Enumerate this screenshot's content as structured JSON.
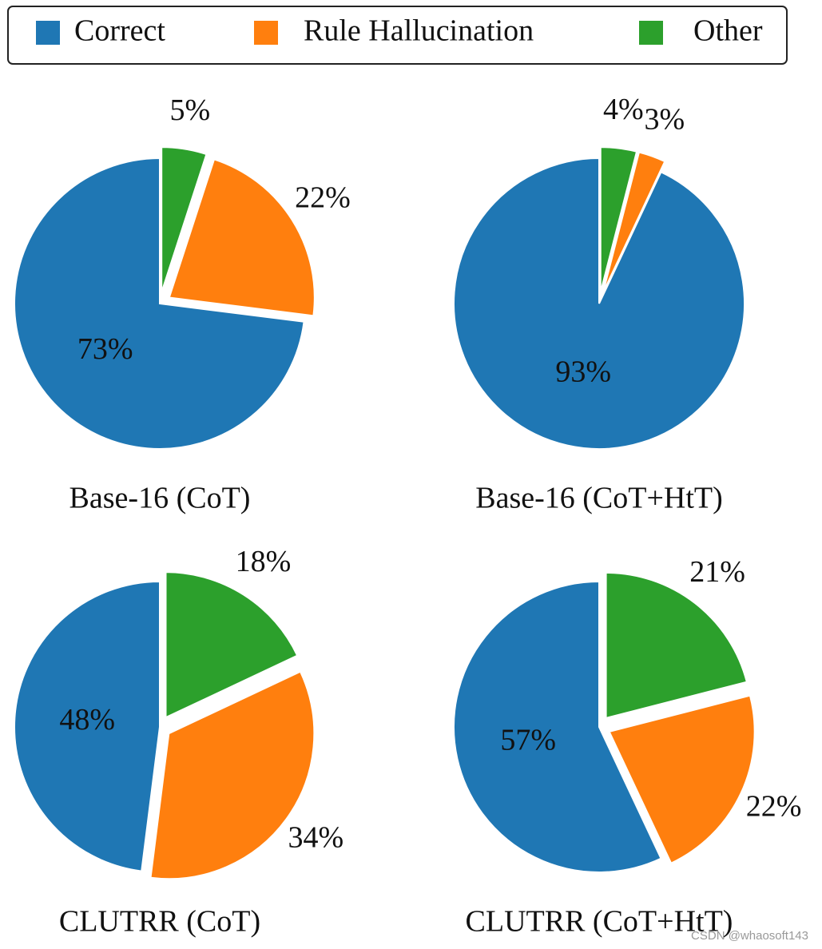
{
  "chart_data": [
    {
      "type": "pie",
      "title": "Base-16 (CoT)",
      "categories": [
        "Correct",
        "Rule Hallucination",
        "Other"
      ],
      "values": [
        73,
        22,
        5
      ],
      "value_labels": [
        "73%",
        "22%",
        "5%"
      ],
      "colors": [
        "#1f77b4",
        "#ff7f0e",
        "#2ca02c"
      ]
    },
    {
      "type": "pie",
      "title": "Base-16 (CoT+HtT)",
      "categories": [
        "Correct",
        "Rule Hallucination",
        "Other"
      ],
      "values": [
        93,
        3,
        4
      ],
      "value_labels": [
        "93%",
        "3%",
        "4%"
      ],
      "colors": [
        "#1f77b4",
        "#ff7f0e",
        "#2ca02c"
      ]
    },
    {
      "type": "pie",
      "title": "CLUTRR (CoT)",
      "categories": [
        "Correct",
        "Rule Hallucination",
        "Other"
      ],
      "values": [
        48,
        34,
        18
      ],
      "value_labels": [
        "48%",
        "34%",
        "18%"
      ],
      "colors": [
        "#1f77b4",
        "#ff7f0e",
        "#2ca02c"
      ]
    },
    {
      "type": "pie",
      "title": "CLUTRR (CoT+HtT)",
      "categories": [
        "Correct",
        "Rule Hallucination",
        "Other"
      ],
      "values": [
        57,
        22,
        21
      ],
      "value_labels": [
        "57%",
        "22%",
        "21%"
      ],
      "colors": [
        "#1f77b4",
        "#ff7f0e",
        "#2ca02c"
      ]
    }
  ],
  "watermark": "CSDN @whaosoft143"
}
